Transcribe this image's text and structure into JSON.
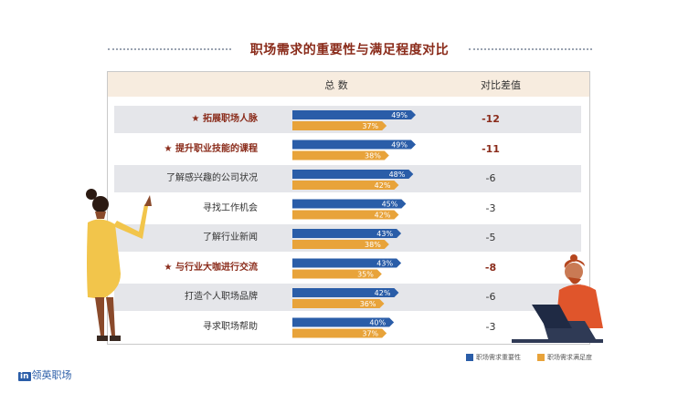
{
  "title": "职场需求的重要性与满足程度对比",
  "columns": {
    "total": "总 数",
    "diff": "对比差值"
  },
  "rows": [
    {
      "label": "拓展职场人脉",
      "highlight": true,
      "star": "★"
    },
    {
      "label": "提升职业技能的课程",
      "highlight": true,
      "star": "★"
    },
    {
      "label": "了解感兴趣的公司状况",
      "highlight": false,
      "star": ""
    },
    {
      "label": "寻找工作机会",
      "highlight": false,
      "star": ""
    },
    {
      "label": "了解行业新闻",
      "highlight": false,
      "star": ""
    },
    {
      "label": "与行业大咖进行交流",
      "highlight": true,
      "star": "★"
    },
    {
      "label": "打造个人职场品牌",
      "highlight": false,
      "star": ""
    },
    {
      "label": "寻求职场帮助",
      "highlight": false,
      "star": ""
    }
  ],
  "chart_data": {
    "type": "bar",
    "categories": [
      "拓展职场人脉",
      "提升职业技能的课程",
      "了解感兴趣的公司状况",
      "寻找工作机会",
      "了解行业新闻",
      "与行业大咖进行交流",
      "打造个人职场品牌",
      "寻求职场帮助"
    ],
    "series": [
      {
        "name": "职场需求重要性",
        "values": [
          49,
          49,
          48,
          45,
          43,
          43,
          42,
          40
        ],
        "labels": [
          "49%",
          "49%",
          "48%",
          "45%",
          "43%",
          "43%",
          "42%",
          "40%"
        ],
        "color": "#2a5da8"
      },
      {
        "name": "职场需求满足度",
        "values": [
          37,
          38,
          42,
          42,
          38,
          35,
          36,
          37
        ],
        "labels": [
          "37%",
          "38%",
          "42%",
          "42%",
          "38%",
          "35%",
          "36%",
          "37%"
        ],
        "color": "#e8a33a"
      }
    ],
    "diff_values": [
      "-12",
      "-11",
      "-6",
      "-3",
      "-5",
      "-8",
      "-6",
      "-3"
    ],
    "orientation": "horizontal",
    "xlim": [
      0,
      55
    ]
  },
  "legend": {
    "blue": "职场需求重要性",
    "orange": "职场需求满足度"
  },
  "brand": {
    "logo": "in",
    "name": "领英职场"
  },
  "colors": {
    "accent": "#8a2b1a",
    "blue": "#2a5da8",
    "orange": "#e8a33a",
    "header": "#f7ecdf",
    "shade": "#e5e6ea"
  }
}
